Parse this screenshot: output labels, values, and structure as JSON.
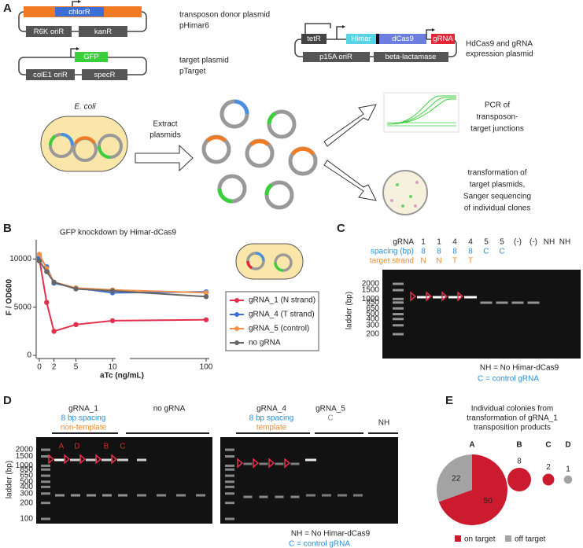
{
  "figure": {
    "panel_labels": [
      "A",
      "B",
      "C",
      "D",
      "E"
    ]
  },
  "panel_a": {
    "plasmids": [
      {
        "genes": [
          "chlorR",
          "R6K oriR",
          "kanR"
        ],
        "caption": [
          "transposon donor plasmid",
          "pHimar6"
        ]
      },
      {
        "genes": [
          "GFP",
          "colE1 oriR",
          "specR"
        ],
        "caption": [
          "target plasmid",
          "pTarget"
        ]
      },
      {
        "genes": [
          "tetR",
          "Himar",
          "dCas9",
          "gRNA",
          "p15A oriR",
          "beta-lactamase"
        ],
        "caption": [
          "HdCas9 and gRNA",
          "expression plasmid"
        ]
      }
    ],
    "cell_label": "E. coli",
    "step": [
      "Extract",
      "plasmids"
    ],
    "outcomes": [
      [
        "PCR of",
        "transposon-",
        "target junctions"
      ],
      [
        "transformation of",
        "target plasmids,",
        "Sanger sequencing",
        "of individual clones"
      ]
    ]
  },
  "chart_data": [
    {
      "type": "line",
      "title": "GFP knockdown by Himar-dCas9",
      "x_label": "aTc (ng/mL)",
      "y_label": "F / OD600",
      "x": [
        0,
        1,
        2,
        5,
        10,
        100
      ],
      "x_segments": [
        [
          0,
          10
        ],
        [
          60,
          100
        ]
      ],
      "xticks": [
        0,
        2,
        5,
        10,
        100
      ],
      "ylim": [
        0,
        12000
      ],
      "yticks": [
        0,
        5000,
        10000
      ],
      "series": [
        {
          "name": "gRNA_1 (N strand)",
          "color": "#e3304c",
          "values": [
            10000,
            5500,
            2500,
            3200,
            3600,
            3700
          ]
        },
        {
          "name": "gRNA_4 (T strand)",
          "color": "#3a6fd8",
          "values": [
            10200,
            9200,
            7500,
            7000,
            6500,
            6600
          ]
        },
        {
          "name": "gRNA_5 (control)",
          "color": "#f0924a",
          "values": [
            10500,
            9000,
            7600,
            7000,
            6800,
            6500
          ]
        },
        {
          "name": "no gRNA",
          "color": "#666666",
          "values": [
            9800,
            8700,
            7600,
            6900,
            6700,
            6100
          ]
        }
      ]
    },
    {
      "type": "bubble_pie",
      "title": [
        "Individual colonies from",
        "transformation of gRNA_1",
        "transposition products"
      ],
      "categories": [
        "A",
        "B",
        "C",
        "D"
      ],
      "series": [
        {
          "name": "on target",
          "color": "#cc1b2e",
          "values": [
            50,
            8,
            2,
            0
          ]
        },
        {
          "name": "off target",
          "color": "#a3a3a3",
          "values": [
            22,
            0,
            0,
            1
          ]
        }
      ]
    }
  ],
  "gel_c": {
    "header_rows": [
      {
        "label": "gRNA",
        "cells": [
          "1",
          "1",
          "4",
          "4",
          "5",
          "5",
          "(-)",
          "(-)",
          "NH",
          "NH"
        ]
      },
      {
        "label": "spacing (bp)",
        "cells": [
          "8",
          "8",
          "8",
          "8",
          "C",
          "C"
        ]
      },
      {
        "label": "target strand",
        "cells": [
          "N",
          "N",
          "T",
          "T"
        ]
      }
    ],
    "axis_label": "ladder (bp)",
    "ladder": [
      "2000",
      "1500",
      "1000",
      "850",
      "650",
      "500",
      "400",
      "300",
      "200"
    ],
    "notes": [
      "NH = No Himar-dCas9",
      "C = control gRNA"
    ]
  },
  "gel_d": {
    "groups": [
      {
        "lines": [
          "gRNA_1",
          "8 bp spacing",
          "non-template"
        ]
      },
      {
        "lines": [
          "no gRNA"
        ]
      },
      {
        "lines": [
          "gRNA_4",
          "8 bp spacing",
          "template"
        ]
      },
      {
        "lines": [
          "gRNA_5",
          "C"
        ]
      },
      {
        "lines": [
          "NH"
        ]
      }
    ],
    "band_letters": [
      "A",
      "D",
      "B",
      "C"
    ],
    "axis_label": "ladder (bp)",
    "ladder": [
      "2000",
      "1500",
      "1000",
      "850",
      "650",
      "500",
      "400",
      "300",
      "200",
      "100"
    ],
    "notes": [
      "NH = No Himar-dCas9",
      "C = control gRNA"
    ]
  }
}
